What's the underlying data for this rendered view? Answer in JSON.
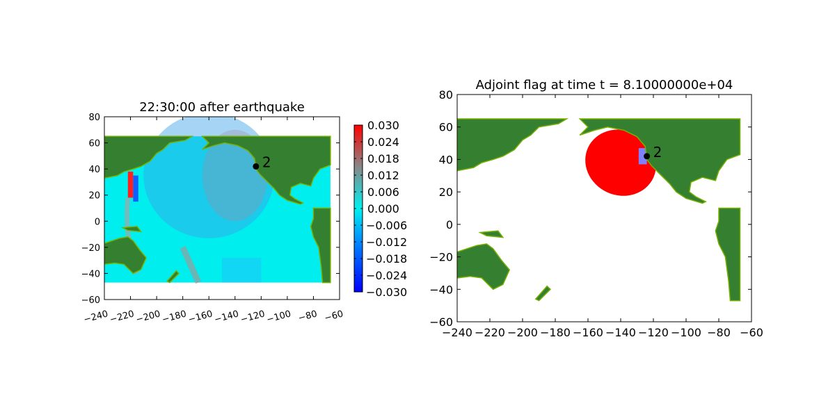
{
  "chart_data": [
    {
      "type": "heatmap",
      "title": "22:30:00 after earthquake",
      "xlim": [
        -240,
        -60
      ],
      "ylim": [
        -60,
        80
      ],
      "xticks": [
        "−240",
        "−220",
        "−200",
        "−180",
        "−160",
        "−140",
        "−120",
        "−100",
        "−80",
        "−60"
      ],
      "xtick_values": [
        -240,
        -220,
        -200,
        -180,
        -160,
        -140,
        -120,
        -100,
        -80,
        -60
      ],
      "yticks": [
        "−60",
        "−40",
        "−20",
        "0",
        "20",
        "40",
        "60",
        "80"
      ],
      "ytick_values": [
        -60,
        -40,
        -20,
        0,
        20,
        40,
        60,
        80
      ],
      "xtick_rotation": "slanted",
      "data_extent": {
        "lon": [
          -240,
          -67
        ],
        "lat": [
          -47,
          65
        ]
      },
      "colorbar": {
        "range": [
          -0.03,
          0.03
        ],
        "ticks": [
          "0.030",
          "0.024",
          "0.018",
          "0.012",
          "0.006",
          "0.000",
          "−0.006",
          "−0.012",
          "−0.018",
          "−0.024",
          "−0.030"
        ],
        "tick_values": [
          0.03,
          0.024,
          0.018,
          0.012,
          0.006,
          0,
          -0.006,
          -0.012,
          -0.018,
          -0.024,
          -0.03
        ],
        "colors": [
          "#0000ff",
          "#00e5ff",
          "#888888",
          "#ff0000"
        ]
      },
      "gauge": {
        "label": "2",
        "lon": -124,
        "lat": 42
      },
      "colors": {
        "land": "#357f30",
        "coast": "#76b000",
        "ocean": "#00eeee"
      }
    },
    {
      "type": "heatmap",
      "title": "Adjoint flag at time t = 8.10000000e+04",
      "xlim": [
        -240,
        -60
      ],
      "ylim": [
        -60,
        80
      ],
      "xticks": [
        "−240",
        "−220",
        "−200",
        "−180",
        "−160",
        "−140",
        "−120",
        "−100",
        "−80",
        "−60"
      ],
      "xtick_values": [
        -240,
        -220,
        -200,
        -180,
        -160,
        -140,
        -120,
        -100,
        -80,
        -60
      ],
      "yticks": [
        "−60",
        "−40",
        "−20",
        "0",
        "20",
        "40",
        "60",
        "80"
      ],
      "ytick_values": [
        -60,
        -40,
        -20,
        0,
        20,
        40,
        60,
        80
      ],
      "flag_region": {
        "center_lon": -140,
        "center_lat": 38,
        "color": "#ff0000"
      },
      "target_box": {
        "lon": [
          -129,
          -124
        ],
        "lat": [
          37,
          47
        ],
        "color": "#8080ff"
      },
      "gauge": {
        "label": "2",
        "lon": -124,
        "lat": 42
      },
      "colors": {
        "land": "#357f30",
        "coast": "#76b000",
        "ocean": "#ffffff"
      }
    }
  ]
}
